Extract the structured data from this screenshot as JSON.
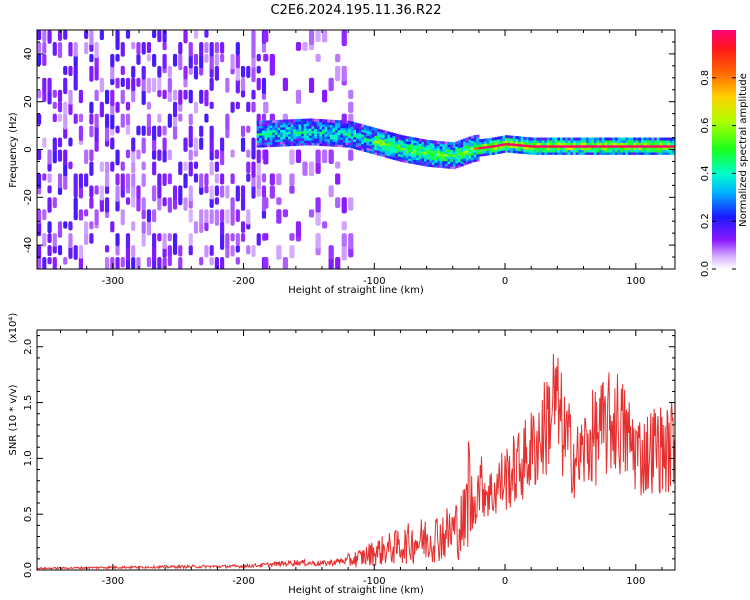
{
  "title": "C2E6.2024.195.11.36.R22",
  "colorbar": {
    "label": "Normalized spectral amplitude",
    "ticks": [
      "0.0",
      "0.2",
      "0.4",
      "0.6",
      "0.8"
    ],
    "tick_values": [
      0.0,
      0.2,
      0.4,
      0.6,
      0.8
    ]
  },
  "chart_data": [
    {
      "type": "heatmap",
      "title": "",
      "xlabel": "Height of straight line (km)",
      "ylabel": "Frequency (Hz)",
      "xlim": [
        -358,
        130
      ],
      "ylim": [
        -50,
        50
      ],
      "x_ticks": [
        -300,
        -200,
        -100,
        0,
        100
      ],
      "x_tick_labels": [
        "-300",
        "-200",
        "-100",
        "0",
        "100"
      ],
      "y_ticks": [
        -40,
        -20,
        0,
        20,
        40
      ],
      "y_tick_labels": [
        "-40",
        "-20",
        "0",
        "20",
        "40"
      ],
      "colormap": "rainbow (white → violet → blue → cyan → green → yellow → red → magenta)",
      "zlim": [
        0,
        1
      ],
      "regions": [
        {
          "name": "broadband noise",
          "x_range": [
            -358,
            -185
          ],
          "freq_range": [
            -50,
            50
          ],
          "amplitude": 0.05
        },
        {
          "name": "sparse noise",
          "x_range": [
            -185,
            -118
          ],
          "freq_range": [
            -50,
            50
          ],
          "amplitude": 0.03
        },
        {
          "name": "signal ridge",
          "x_range": [
            -190,
            130
          ],
          "amplitude": "0.1–1.0"
        }
      ],
      "ridge": {
        "x": [
          -190,
          -150,
          -120,
          -100,
          -80,
          -60,
          -40,
          -25,
          -10,
          0,
          20,
          50,
          80,
          110,
          130
        ],
        "freq": [
          6,
          7,
          6,
          3,
          0,
          -2,
          -3,
          0,
          1,
          2,
          1,
          1,
          1,
          1,
          1
        ]
      }
    },
    {
      "type": "line",
      "title": "",
      "xlabel": "Height of straight line (km)",
      "ylabel": "SNR (10 * v/v)",
      "y_multiplier": "(x10⁴)",
      "xlim": [
        -358,
        130
      ],
      "ylim": [
        0,
        21500
      ],
      "x_ticks": [
        -300,
        -200,
        -100,
        0,
        100
      ],
      "x_tick_labels": [
        "-300",
        "-200",
        "-100",
        "0",
        "100"
      ],
      "y_ticks": [
        0,
        5000,
        10000,
        15000,
        20000
      ],
      "y_tick_labels": [
        "0.0",
        "0.5",
        "1.0",
        "1.5",
        "2.0"
      ],
      "series": [
        {
          "color": "#e53030",
          "x": [
            -358,
            -300,
            -250,
            -200,
            -180,
            -160,
            -140,
            -120,
            -110,
            -100,
            -90,
            -80,
            -70,
            -60,
            -50,
            -45,
            -40,
            -35,
            -30,
            -28,
            -25,
            -22,
            -20,
            -15,
            -10,
            -5,
            0,
            10,
            20,
            30,
            38,
            45,
            55,
            65,
            75,
            85,
            95,
            105,
            115,
            125,
            130
          ],
          "y": [
            150,
            250,
            300,
            350,
            500,
            700,
            600,
            900,
            1200,
            1700,
            2000,
            2300,
            2700,
            3000,
            3300,
            3500,
            3800,
            4200,
            4800,
            9000,
            5000,
            7000,
            8000,
            7500,
            7000,
            8000,
            8500,
            9500,
            11000,
            13000,
            16000,
            12500,
            10000,
            12000,
            13000,
            14000,
            12000,
            10500,
            11500,
            11000,
            12500
          ]
        }
      ]
    }
  ]
}
